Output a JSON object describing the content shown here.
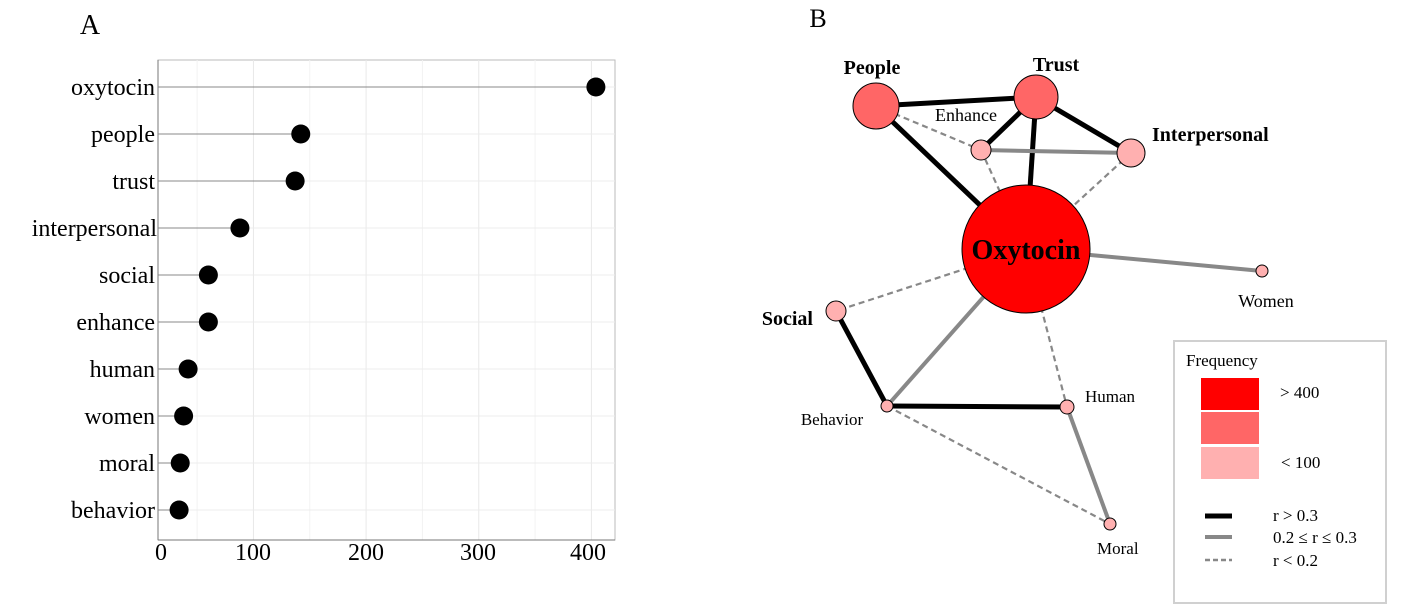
{
  "panel_a": {
    "label": "A",
    "chart_data": {
      "type": "lollipop",
      "orientation": "horizontal",
      "categories": [
        "oxytocin",
        "people",
        "trust",
        "interpersonal",
        "social",
        "enhance",
        "human",
        "women",
        "moral",
        "behavior"
      ],
      "values": [
        404,
        142,
        137,
        88,
        60,
        60,
        42,
        38,
        35,
        34
      ],
      "xticks": [
        "0",
        "100",
        "200",
        "300",
        "400"
      ],
      "xlim": [
        0,
        420
      ],
      "grid": true,
      "point_color": "#000000",
      "stem_color": "#888888"
    }
  },
  "panel_b": {
    "label": "B",
    "nodes": [
      {
        "id": "people",
        "label": "People",
        "bold": true,
        "color": "#ff6666"
      },
      {
        "id": "trust",
        "label": "Trust",
        "bold": true,
        "color": "#ff6666"
      },
      {
        "id": "enhance",
        "label": "Enhance",
        "bold": false,
        "color": "#ffb0b0"
      },
      {
        "id": "interpersonal",
        "label": "Interpersonal",
        "bold": true,
        "color": "#ffb0b0"
      },
      {
        "id": "oxytocin",
        "label": "Oxytocin",
        "bold": true,
        "color": "#ff0000"
      },
      {
        "id": "women",
        "label": "Women",
        "bold": false,
        "color": "#ffb0b0"
      },
      {
        "id": "social",
        "label": "Social",
        "bold": true,
        "color": "#ffb0b0"
      },
      {
        "id": "behavior",
        "label": "Behavior",
        "bold": false,
        "color": "#ffb0b0"
      },
      {
        "id": "human",
        "label": "Human",
        "bold": false,
        "color": "#ffb0b0"
      },
      {
        "id": "moral",
        "label": "Moral",
        "bold": false,
        "color": "#ffb0b0"
      }
    ],
    "edges": [
      {
        "source": "people",
        "target": "trust",
        "strength": "strong"
      },
      {
        "source": "people",
        "target": "oxytocin",
        "strength": "strong"
      },
      {
        "source": "people",
        "target": "enhance",
        "strength": "weak"
      },
      {
        "source": "trust",
        "target": "enhance",
        "strength": "strong"
      },
      {
        "source": "trust",
        "target": "oxytocin",
        "strength": "strong"
      },
      {
        "source": "trust",
        "target": "interpersonal",
        "strength": "strong"
      },
      {
        "source": "enhance",
        "target": "interpersonal",
        "strength": "medium"
      },
      {
        "source": "enhance",
        "target": "oxytocin",
        "strength": "weak"
      },
      {
        "source": "interpersonal",
        "target": "oxytocin",
        "strength": "weak"
      },
      {
        "source": "oxytocin",
        "target": "women",
        "strength": "medium"
      },
      {
        "source": "oxytocin",
        "target": "social",
        "strength": "weak"
      },
      {
        "source": "oxytocin",
        "target": "behavior",
        "strength": "medium"
      },
      {
        "source": "oxytocin",
        "target": "human",
        "strength": "weak"
      },
      {
        "source": "social",
        "target": "behavior",
        "strength": "strong"
      },
      {
        "source": "behavior",
        "target": "human",
        "strength": "strong"
      },
      {
        "source": "behavior",
        "target": "moral",
        "strength": "weak"
      },
      {
        "source": "human",
        "target": "moral",
        "strength": "medium"
      }
    ],
    "legend": {
      "title": "Frequency",
      "colors": [
        "#ff0000",
        "#ff6666",
        "#ffb0b0"
      ],
      "high_label": "> 400",
      "low_label": "< 100",
      "edge_items": [
        {
          "strength": "strong",
          "label": "r > 0.3",
          "color": "#000000"
        },
        {
          "strength": "medium",
          "label": "0.2 ≤ r ≤ 0.3",
          "color": "#888888"
        },
        {
          "strength": "weak",
          "label": "r < 0.2",
          "color": "#888888"
        }
      ]
    }
  }
}
